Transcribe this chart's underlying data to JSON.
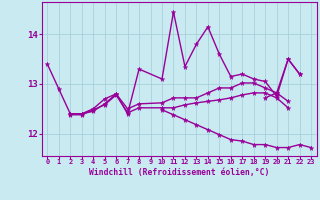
{
  "x": [
    0,
    1,
    2,
    3,
    4,
    5,
    6,
    7,
    8,
    9,
    10,
    11,
    12,
    13,
    14,
    15,
    16,
    17,
    18,
    19,
    20,
    21,
    22,
    23
  ],
  "line1": [
    13.4,
    12.9,
    12.4,
    12.4,
    12.5,
    12.7,
    12.8,
    12.4,
    13.3,
    null,
    13.1,
    14.45,
    13.35,
    13.8,
    14.15,
    13.6,
    13.15,
    13.2,
    13.1,
    13.05,
    12.75,
    13.5,
    13.2,
    null
  ],
  "line2": [
    null,
    null,
    12.4,
    12.4,
    12.45,
    12.6,
    12.8,
    12.5,
    12.6,
    null,
    12.62,
    12.72,
    12.72,
    12.72,
    12.82,
    12.92,
    12.92,
    13.02,
    13.02,
    12.92,
    12.82,
    12.65,
    null,
    null
  ],
  "line3": [
    null,
    null,
    12.38,
    12.38,
    12.48,
    12.58,
    12.78,
    12.42,
    12.52,
    null,
    12.52,
    12.52,
    12.58,
    12.62,
    12.65,
    12.68,
    12.72,
    12.78,
    12.82,
    12.82,
    12.72,
    12.52,
    null,
    null
  ],
  "line4": [
    null,
    null,
    null,
    null,
    null,
    null,
    null,
    null,
    null,
    null,
    12.48,
    12.38,
    12.28,
    12.18,
    12.08,
    11.98,
    11.88,
    11.85,
    11.78,
    11.78,
    11.72,
    11.72,
    11.78,
    11.72
  ],
  "line5": [
    null,
    null,
    null,
    null,
    null,
    null,
    null,
    null,
    null,
    null,
    null,
    null,
    null,
    null,
    null,
    null,
    null,
    null,
    null,
    12.72,
    12.82,
    13.5,
    13.2,
    null
  ],
  "bg_color": "#c8eaf0",
  "line_color": "#990099",
  "xlabel": "Windchill (Refroidissement éolien,°C)",
  "ylim": [
    11.55,
    14.65
  ],
  "xlim": [
    -0.5,
    23.5
  ],
  "yticks": [
    12,
    13,
    14
  ],
  "xticks": [
    0,
    1,
    2,
    3,
    4,
    5,
    6,
    7,
    8,
    9,
    10,
    11,
    12,
    13,
    14,
    15,
    16,
    17,
    18,
    19,
    20,
    21,
    22,
    23
  ],
  "linewidth": 1.0,
  "markersize": 3.5
}
